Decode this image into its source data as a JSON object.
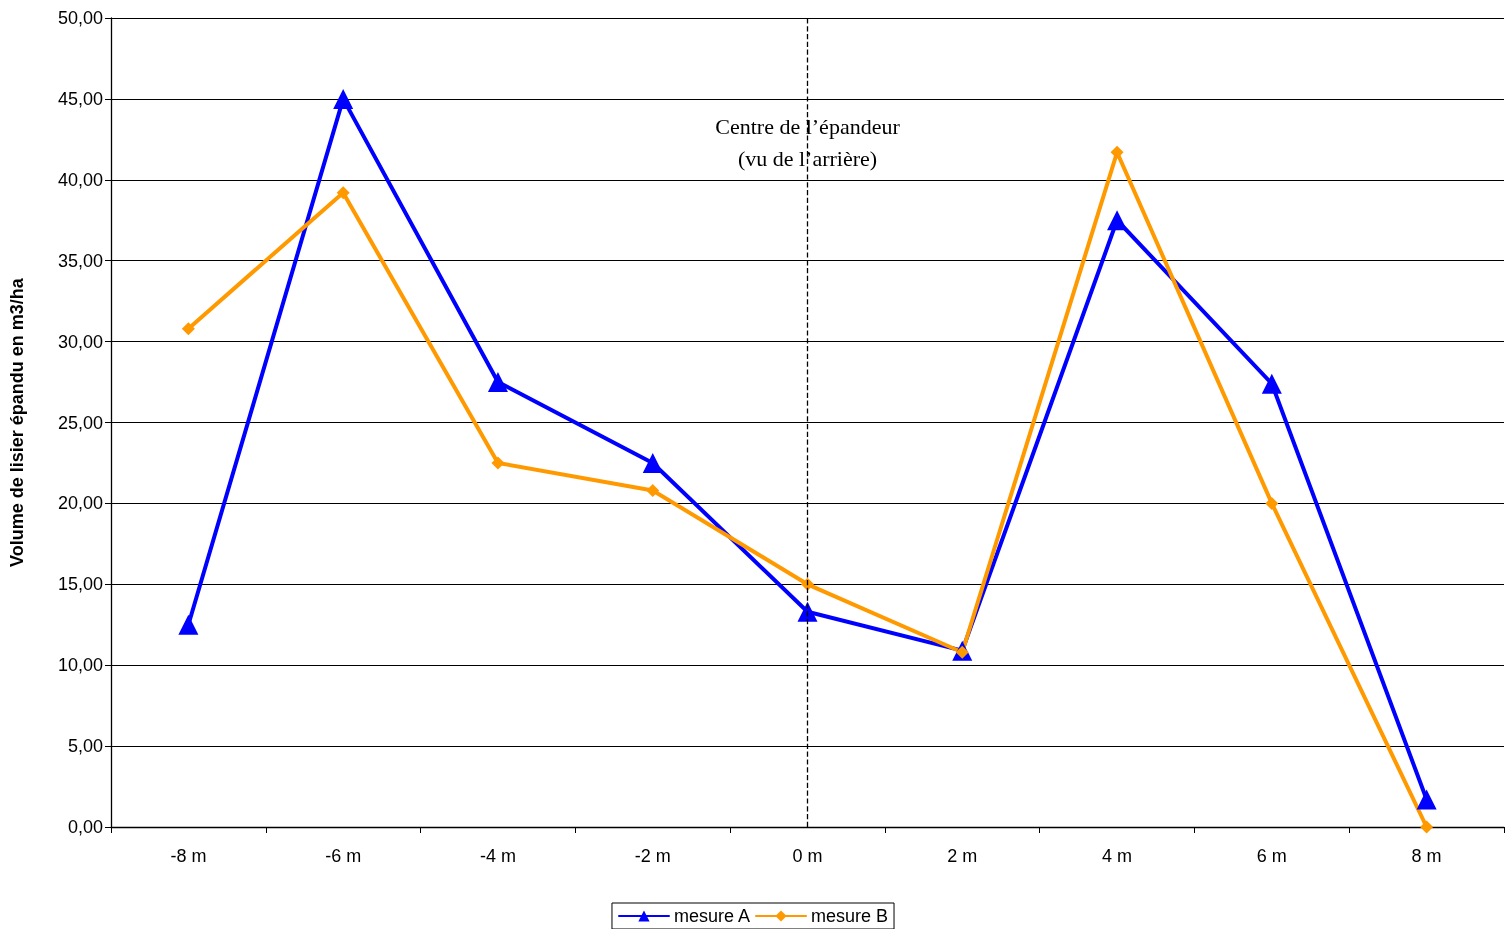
{
  "chart_data": {
    "type": "line",
    "ylabel": "Volume de lisier épandu en m3/ha",
    "categories": [
      "-8 m",
      "-6 m",
      "-4 m",
      "-2 m",
      "0 m",
      "2 m",
      "4 m",
      "6 m",
      "8 m"
    ],
    "series": [
      {
        "name": "mesure A",
        "color": "#0000ff",
        "marker": "triangle",
        "values": [
          12.5,
          45.0,
          27.5,
          22.5,
          13.3,
          10.9,
          37.5,
          27.4,
          1.7
        ]
      },
      {
        "name": "mesure B",
        "color": "#ff9900",
        "marker": "diamond",
        "values": [
          30.8,
          39.2,
          22.5,
          20.8,
          15.0,
          10.8,
          41.7,
          20.0,
          0.0
        ]
      }
    ],
    "ylim": [
      0,
      50
    ],
    "yticks": [
      {
        "value": 0,
        "label": "0,00"
      },
      {
        "value": 5,
        "label": "5,00"
      },
      {
        "value": 10,
        "label": "10,00"
      },
      {
        "value": 15,
        "label": "15,00"
      },
      {
        "value": 20,
        "label": "20,00"
      },
      {
        "value": 25,
        "label": "25,00"
      },
      {
        "value": 30,
        "label": "30,00"
      },
      {
        "value": 35,
        "label": "35,00"
      },
      {
        "value": 40,
        "label": "40,00"
      },
      {
        "value": 45,
        "label": "45,00"
      },
      {
        "value": 50,
        "label": "50,00"
      }
    ],
    "ref_lines": [
      {
        "axis": "x",
        "value": "0 m",
        "label": "Centre de l’épandeur\n(vu de l’arrière)",
        "color": "#000000",
        "line_style": "dashed"
      }
    ],
    "grid": "y",
    "legend": "bottom",
    "line_style": "solid"
  }
}
